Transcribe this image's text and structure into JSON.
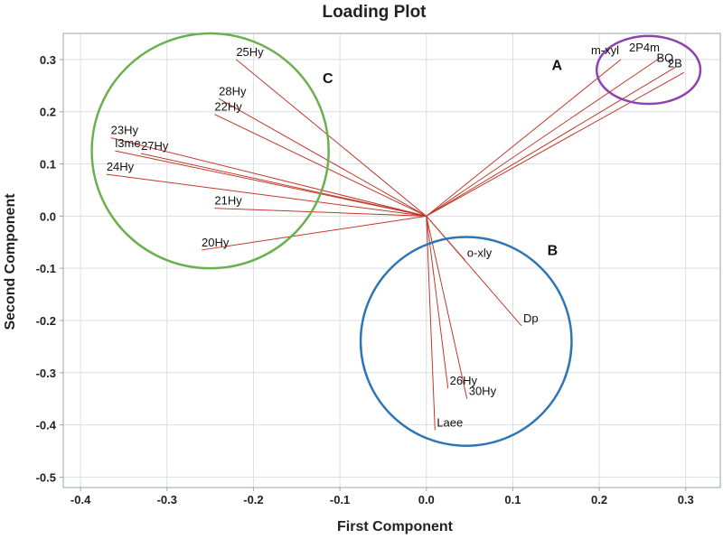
{
  "chart_data": {
    "type": "scatter",
    "title": "Loading Plot",
    "xlabel": "First Component",
    "ylabel": "Second Component",
    "xlim": [
      -0.42,
      0.34
    ],
    "ylim": [
      -0.52,
      0.35
    ],
    "x_ticks": [
      -0.4,
      -0.3,
      -0.2,
      -0.1,
      0.0,
      0.1,
      0.2,
      0.3
    ],
    "x_tick_labels": [
      "-0.4",
      "-0.3",
      "-0.2",
      "-0.1",
      "0.0",
      "0.1",
      "0.2",
      "0.3"
    ],
    "y_ticks": [
      0.3,
      0.2,
      0.1,
      0.0,
      -0.1,
      -0.2,
      -0.3,
      -0.4,
      -0.5
    ],
    "y_tick_labels": [
      "0.3",
      "0.2",
      "0.1",
      "0.0",
      "-0.1",
      "-0.2",
      "-0.3",
      "-0.4",
      "-0.5"
    ],
    "grid": true,
    "vector_origin": [
      0,
      0
    ],
    "vector_color": "#c0392b",
    "points": [
      {
        "label": "m-xyl",
        "x": 0.225,
        "y": 0.3
      },
      {
        "label": "2P4m",
        "x": 0.272,
        "y": 0.305
      },
      {
        "label": "BQ",
        "x": 0.288,
        "y": 0.285
      },
      {
        "label": "2B",
        "x": 0.298,
        "y": 0.275
      },
      {
        "label": "25Hy",
        "x": -0.22,
        "y": 0.3
      },
      {
        "label": "28Hy",
        "x": -0.24,
        "y": 0.225
      },
      {
        "label": "22Hy",
        "x": -0.245,
        "y": 0.195
      },
      {
        "label": "23Hy",
        "x": -0.365,
        "y": 0.15
      },
      {
        "label": "l3me",
        "x": -0.36,
        "y": 0.125
      },
      {
        "label": "27Hy",
        "x": -0.33,
        "y": 0.12
      },
      {
        "label": "24Hy",
        "x": -0.37,
        "y": 0.08
      },
      {
        "label": "21Hy",
        "x": -0.245,
        "y": 0.015
      },
      {
        "label": "20Hy",
        "x": -0.26,
        "y": -0.065
      },
      {
        "label": "o-xly",
        "x": 0.045,
        "y": -0.085
      },
      {
        "label": "Dp",
        "x": 0.11,
        "y": -0.21
      },
      {
        "label": "26Hy",
        "x": 0.025,
        "y": -0.33
      },
      {
        "label": "30Hy",
        "x": 0.047,
        "y": -0.35
      },
      {
        "label": "Laee",
        "x": 0.01,
        "y": -0.41
      }
    ],
    "groups": [
      {
        "label": "A",
        "cx": 0.257,
        "cy": 0.28,
        "rx": 0.06,
        "ry": 0.065,
        "color": "#8e44ad",
        "label_x": 0.145,
        "label_y": 0.28
      },
      {
        "label": "B",
        "cx": 0.046,
        "cy": -0.24,
        "rx": 0.122,
        "ry": 0.2,
        "color": "#2e75b6",
        "label_x": 0.14,
        "label_y": -0.075
      },
      {
        "label": "C",
        "cx": -0.25,
        "cy": 0.125,
        "rx": 0.137,
        "ry": 0.225,
        "color": "#6ab04c",
        "label_x": -0.12,
        "label_y": 0.255
      }
    ]
  }
}
